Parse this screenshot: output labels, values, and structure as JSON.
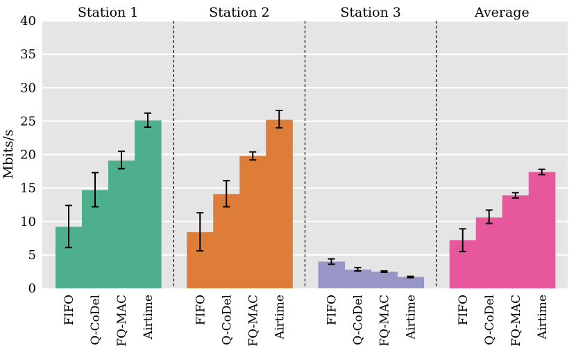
{
  "chart_data": {
    "type": "bar",
    "ylabel": "Mbits/s",
    "ylim": [
      0,
      40
    ],
    "yticks": [
      0,
      5,
      10,
      15,
      20,
      25,
      30,
      35,
      40
    ],
    "grid": true,
    "categories": [
      "FIFO",
      "Q-CoDel",
      "FQ-MAC",
      "Airtime"
    ],
    "panels": [
      {
        "title": "Station 1",
        "color": "#4daf8c",
        "values": [
          9.2,
          14.7,
          19.1,
          25.1
        ],
        "err_low": [
          6.1,
          12.2,
          17.9,
          24.1
        ],
        "err_high": [
          12.4,
          17.3,
          20.5,
          26.2
        ]
      },
      {
        "title": "Station 2",
        "color": "#dd7d37",
        "values": [
          8.4,
          14.1,
          19.8,
          25.2
        ],
        "err_low": [
          5.6,
          12.2,
          19.2,
          24.0
        ],
        "err_high": [
          11.3,
          16.1,
          20.4,
          26.6
        ]
      },
      {
        "title": "Station 3",
        "color": "#9896c6",
        "values": [
          4.0,
          2.8,
          2.5,
          1.7
        ],
        "err_low": [
          3.6,
          2.6,
          2.4,
          1.6
        ],
        "err_high": [
          4.4,
          3.1,
          2.6,
          1.8
        ]
      },
      {
        "title": "Average",
        "color": "#e6589b",
        "values": [
          7.2,
          10.6,
          13.9,
          17.4
        ],
        "err_low": [
          5.5,
          9.7,
          13.5,
          17.0
        ],
        "err_high": [
          8.9,
          11.7,
          14.3,
          17.8
        ]
      }
    ]
  }
}
